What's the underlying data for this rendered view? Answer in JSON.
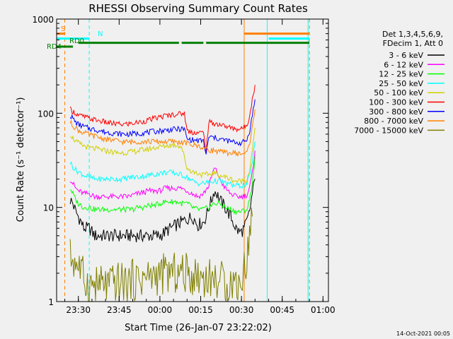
{
  "chart_data": {
    "type": "line",
    "title": "RHESSI Observing Summary Count Rates",
    "xlabel": "Start Time (26-Jan-07 23:22:02)",
    "ylabel": "Count Rate (s⁻¹ detector⁻¹)",
    "x_unit": "minutes after 23:22:02",
    "xlim": [
      0,
      100
    ],
    "ylim": [
      1,
      1000
    ],
    "yscale": "log",
    "x_ticks": [
      {
        "x": 8,
        "label": "23:30"
      },
      {
        "x": 23,
        "label": "23:45"
      },
      {
        "x": 38,
        "label": "00:00"
      },
      {
        "x": 53,
        "label": "00:15"
      },
      {
        "x": 68,
        "label": "00:30"
      },
      {
        "x": 83,
        "label": "00:45"
      },
      {
        "x": 98,
        "label": "01:00"
      }
    ],
    "y_ticks": [
      {
        "y": 1,
        "label": "1"
      },
      {
        "y": 10,
        "label": "10"
      },
      {
        "y": 100,
        "label": "100"
      },
      {
        "y": 1000,
        "label": "1000"
      }
    ],
    "legend_header": [
      "Det 1,3,4,5,6,9,",
      "FDecim 1, Att 0"
    ],
    "legend_position": "right",
    "series": [
      {
        "name": "3 - 6 keV",
        "color": "#000000",
        "x": [
          5,
          6,
          7,
          8,
          9,
          10,
          12,
          14,
          16,
          18,
          20,
          22,
          24,
          26,
          28,
          30,
          32,
          34,
          36,
          38,
          40,
          42,
          44,
          46,
          48,
          50,
          52,
          54,
          55,
          56,
          57,
          58,
          59,
          60,
          62,
          64,
          66,
          67,
          68,
          69,
          70,
          71,
          72,
          73
        ],
        "y": [
          12,
          11,
          9,
          8,
          7,
          6,
          6,
          5,
          5,
          5,
          5,
          5,
          5,
          5,
          5,
          5,
          5,
          5,
          5,
          5,
          5.5,
          6,
          6.5,
          7,
          7.5,
          8,
          6.5,
          7,
          8,
          10,
          12,
          15,
          14,
          12,
          10,
          8,
          6,
          5.5,
          5.5,
          6,
          7,
          9,
          14,
          20
        ]
      },
      {
        "name": "6 - 12 keV",
        "color": "#ff00ff",
        "x": [
          5,
          6,
          7,
          8,
          10,
          12,
          14,
          16,
          18,
          20,
          22,
          24,
          26,
          28,
          30,
          32,
          34,
          36,
          38,
          40,
          42,
          44,
          46,
          48,
          50,
          52,
          54,
          56,
          57,
          58,
          59,
          60,
          62,
          64,
          66,
          68,
          70,
          71,
          72,
          73
        ],
        "y": [
          20,
          18,
          16,
          15,
          14,
          14,
          13,
          13,
          13,
          13,
          13,
          13,
          13,
          13.5,
          14,
          14.5,
          15,
          15,
          15,
          16,
          16,
          16,
          16,
          15,
          14,
          13,
          14,
          17,
          21,
          26,
          24,
          20,
          16,
          14,
          13,
          13,
          13.5,
          16,
          23,
          40
        ]
      },
      {
        "name": "12 - 25 keV",
        "color": "#00ff00",
        "x": [
          5,
          6,
          7,
          8,
          10,
          12,
          14,
          16,
          18,
          20,
          22,
          24,
          26,
          28,
          30,
          32,
          34,
          36,
          38,
          40,
          42,
          44,
          46,
          48,
          50,
          52,
          54,
          56,
          58,
          60,
          62,
          64,
          66,
          68,
          70,
          71,
          72,
          73
        ],
        "y": [
          16,
          14,
          12,
          11,
          10,
          10,
          9.5,
          9.5,
          9.5,
          9.5,
          9.5,
          9.5,
          9.5,
          9.5,
          10,
          10,
          10.5,
          10.5,
          11,
          11.5,
          11.5,
          11.5,
          11,
          11,
          10,
          9.5,
          9.5,
          10,
          11,
          11,
          10,
          9.5,
          9,
          9,
          9.5,
          12,
          18,
          35
        ]
      },
      {
        "name": "25 - 50 keV",
        "color": "#00ffff",
        "x": [
          5,
          6,
          7,
          8,
          10,
          12,
          14,
          16,
          18,
          20,
          22,
          24,
          26,
          28,
          30,
          32,
          34,
          36,
          38,
          40,
          42,
          44,
          46,
          48,
          50,
          52,
          54,
          56,
          58,
          60,
          62,
          64,
          66,
          68,
          70,
          71,
          72,
          73
        ],
        "y": [
          30,
          27,
          25,
          24,
          22,
          21,
          20,
          20,
          20,
          20,
          20,
          20,
          20.5,
          21,
          21,
          21.5,
          22,
          22.5,
          23,
          23.5,
          23.5,
          23,
          22,
          21,
          19,
          18,
          18,
          18.5,
          19,
          19,
          18,
          17.5,
          17,
          17,
          17.5,
          22,
          30,
          50
        ]
      },
      {
        "name": "50 - 100 keV",
        "color": "#d0d000",
        "x": [
          5,
          6,
          7,
          8,
          10,
          12,
          14,
          16,
          18,
          20,
          22,
          24,
          26,
          28,
          30,
          32,
          34,
          36,
          38,
          40,
          42,
          44,
          46,
          48,
          50,
          52,
          54,
          56,
          58,
          60,
          62,
          64,
          66,
          68,
          70,
          71,
          72,
          73
        ],
        "y": [
          60,
          55,
          50,
          48,
          45,
          43,
          42,
          41,
          40,
          39,
          38,
          38,
          38.5,
          39,
          40,
          41,
          42,
          43,
          44,
          45,
          46,
          46,
          44,
          26,
          24,
          23,
          22,
          22.5,
          23,
          22,
          21,
          20,
          19,
          19,
          20,
          25,
          40,
          70
        ]
      },
      {
        "name": "100 - 300 keV",
        "color": "#ff0000",
        "x": [
          5,
          6,
          7,
          8,
          10,
          12,
          14,
          16,
          18,
          20,
          22,
          24,
          26,
          28,
          30,
          32,
          34,
          36,
          38,
          40,
          42,
          44,
          46,
          47,
          48,
          50,
          52,
          54,
          55,
          56,
          58,
          60,
          62,
          64,
          66,
          68,
          70,
          71,
          72,
          73
        ],
        "y": [
          110,
          105,
          100,
          95,
          92,
          88,
          85,
          83,
          80,
          78,
          77,
          76,
          77,
          78,
          80,
          82,
          85,
          88,
          91,
          94,
          96,
          98,
          99,
          100,
          65,
          63,
          62,
          62,
          40,
          80,
          78,
          76,
          73,
          70,
          68,
          68,
          75,
          95,
          140,
          200
        ]
      },
      {
        "name": "300 - 800 keV",
        "color": "#0000ff",
        "x": [
          5,
          6,
          7,
          8,
          10,
          12,
          14,
          16,
          18,
          20,
          22,
          24,
          26,
          28,
          30,
          32,
          34,
          36,
          38,
          40,
          42,
          44,
          46,
          47,
          48,
          50,
          52,
          54,
          55,
          56,
          58,
          60,
          62,
          64,
          66,
          68,
          70,
          71,
          72,
          73
        ],
        "y": [
          95,
          88,
          80,
          76,
          72,
          69,
          67,
          65,
          63,
          62,
          61,
          60,
          60,
          60.5,
          61,
          62,
          63,
          64,
          65,
          66,
          67,
          67.5,
          68,
          68,
          53,
          52,
          51,
          51,
          36,
          56,
          55,
          53,
          52,
          50,
          49,
          48,
          52,
          65,
          95,
          140
        ]
      },
      {
        "name": "800 - 7000 keV",
        "color": "#ff8000",
        "x": [
          5,
          6,
          7,
          8,
          10,
          12,
          14,
          16,
          18,
          20,
          22,
          24,
          26,
          28,
          30,
          32,
          34,
          36,
          38,
          40,
          42,
          44,
          46,
          48,
          50,
          52,
          54,
          56,
          58,
          60,
          62,
          64,
          66,
          68,
          70,
          71,
          72,
          73
        ],
        "y": [
          80,
          74,
          70,
          66,
          62,
          59,
          57,
          55,
          53,
          52,
          51,
          50,
          49.5,
          49.5,
          50,
          50,
          50,
          50,
          50,
          50,
          50,
          49.5,
          49,
          48,
          46,
          45,
          43,
          41,
          40,
          39,
          38,
          38,
          37.5,
          37,
          38,
          48,
          70,
          110
        ]
      },
      {
        "name": "7000 - 15000 keV",
        "color": "#808000",
        "x": [
          5,
          6,
          7,
          8,
          9,
          10,
          11,
          12,
          14,
          16,
          18,
          20,
          22,
          24,
          26,
          28,
          30,
          32,
          34,
          36,
          38,
          40,
          42,
          44,
          46,
          48,
          50,
          52,
          54,
          56,
          58,
          60,
          62,
          64,
          66,
          68,
          70,
          71,
          72
        ],
        "y": [
          3,
          2.8,
          2.6,
          2.5,
          2,
          1.8,
          1.6,
          1.5,
          1.5,
          1.5,
          1.5,
          1.5,
          1.6,
          1.6,
          1.6,
          1.7,
          1.7,
          1.8,
          1.8,
          1.9,
          1.9,
          2,
          2,
          2,
          2,
          2,
          1.9,
          1.9,
          1.8,
          1.8,
          1.7,
          1.7,
          1.6,
          1.6,
          1.6,
          1.6,
          3,
          5,
          8
        ]
      }
    ],
    "annotations": [
      {
        "label": "S",
        "color": "#ff8000"
      },
      {
        "label": "N",
        "color": "#00ffff"
      },
      {
        "label": "RD0",
        "color": "#008000"
      },
      {
        "label": "RD4",
        "color": "#008000"
      }
    ],
    "flag_bars": [
      {
        "color": "#ff8000",
        "y": 700,
        "segments": [
          [
            0,
            3
          ],
          [
            69,
            93
          ]
        ]
      },
      {
        "color": "#00ffff",
        "y": 620,
        "segments": [
          [
            0,
            12
          ],
          [
            78,
            93
          ]
        ]
      },
      {
        "color": "#008000",
        "y": 560,
        "segments": [
          [
            8,
            45
          ],
          [
            46,
            54
          ],
          [
            55,
            93
          ]
        ]
      },
      {
        "color": "#008000",
        "y": 510,
        "segments": [
          [
            0,
            6
          ]
        ]
      }
    ],
    "vlines": [
      {
        "x": 0,
        "color": "#00ffff",
        "style": "solid"
      },
      {
        "x": 3,
        "color": "#ff8000",
        "style": "dashed"
      },
      {
        "x": 12,
        "color": "#00ffff",
        "style": "dashed"
      },
      {
        "x": 69,
        "color": "#ff8000",
        "style": "solid"
      },
      {
        "x": 77.5,
        "color": "#00ffff",
        "style": "solid"
      },
      {
        "x": 92.5,
        "color": "#00ffff",
        "style": "solid"
      },
      {
        "x": 93,
        "color": "#ff8000",
        "style": "dashed"
      }
    ]
  },
  "footer_timestamp": "14-Oct-2021 00:05"
}
